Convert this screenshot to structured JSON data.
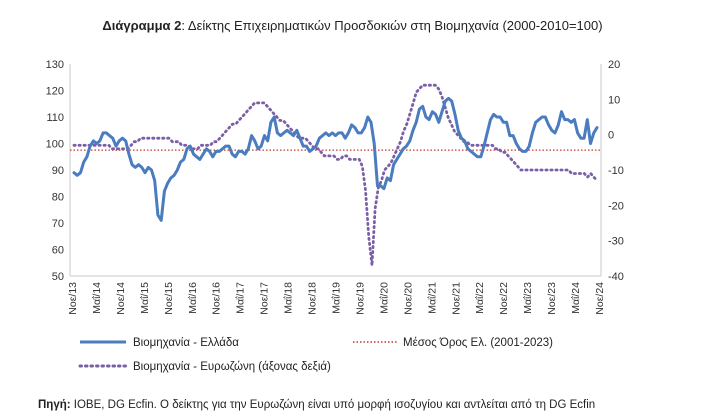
{
  "title_bold": "Διάγραμμα 2",
  "title_rest": ": Δείκτης Επιχειρηματικών Προσδοκιών στη Βιομηχανία (2000-2010=100)",
  "source_label": "Πηγή:",
  "source_text": " ΙΟΒΕ, DG Ecfin. Ο δείκτης για την Ευρωζώνη είναι υπό μορφή ισοζυγίου και αντλείται από τη DG Ecfin",
  "colors": {
    "greece": "#4a7cbf",
    "mean": "#c0392b",
    "eurozone": "#7b5fa6",
    "axis": "#999999"
  },
  "chart_data": {
    "type": "line",
    "title": "Δείκτης Επιχειρηματικών Προσδοκιών στη Βιομηχανία (2000-2010=100)",
    "x_tick_labels": [
      "Νοε/13",
      "Μαΐ/14",
      "Νοε/14",
      "Μαΐ/15",
      "Νοε/15",
      "Μαΐ/16",
      "Νοε/16",
      "Μαΐ/17",
      "Νοε/17",
      "Μαΐ/18",
      "Νοε/18",
      "Μαΐ/19",
      "Νοε/19",
      "Μαΐ/20",
      "Νοε/20",
      "Μαΐ/21",
      "Νοε/21",
      "Μαΐ/22",
      "Νοε/22",
      "Μαΐ/23",
      "Νοε/23",
      "Μαΐ/24",
      "Νοε/24"
    ],
    "y_left": {
      "min": 50,
      "max": 130,
      "step": 10,
      "ticks": [
        "50",
        "60",
        "70",
        "80",
        "90",
        "100",
        "110",
        "120",
        "130"
      ]
    },
    "y_right": {
      "min": -40,
      "max": 20,
      "step": 10,
      "ticks": [
        "-40",
        "-30",
        "-20",
        "-10",
        "0",
        "10",
        "20"
      ]
    },
    "grid": false,
    "legend_position": "bottom",
    "series": [
      {
        "name": "Βιομηχανία  - Ελλάδα",
        "axis": "left",
        "style": "solid",
        "values": [
          89,
          88,
          89,
          93,
          95,
          99,
          101,
          100,
          101,
          104,
          104,
          103,
          102,
          99,
          101,
          102,
          101,
          96,
          92,
          91,
          92,
          91,
          89,
          91,
          90,
          86,
          73,
          71,
          82,
          85,
          87,
          88,
          90,
          93,
          94,
          98,
          99,
          96,
          95,
          94,
          96,
          98,
          97,
          95,
          97,
          97,
          98,
          99,
          99,
          96,
          95,
          97,
          97,
          96,
          98,
          103,
          101,
          98,
          99,
          103,
          101,
          108,
          110,
          104,
          103,
          104,
          105,
          104,
          103,
          105,
          102,
          99,
          99,
          97,
          98,
          99,
          102,
          103,
          104,
          103,
          104,
          103,
          104,
          104,
          102,
          104,
          107,
          106,
          104,
          104,
          106,
          110,
          108,
          100,
          84,
          84,
          83,
          87,
          86,
          92,
          94,
          96,
          98,
          99,
          101,
          105,
          108,
          113,
          114,
          110,
          109,
          112,
          111,
          108,
          112,
          116,
          117,
          116,
          111,
          105,
          102,
          101,
          98,
          97,
          96,
          95,
          95,
          99,
          104,
          109,
          111,
          110,
          110,
          108,
          108,
          103,
          103,
          100,
          98,
          97,
          97,
          99,
          104,
          108,
          109,
          110,
          110,
          107,
          105,
          104,
          107,
          112,
          109,
          109,
          108,
          109,
          104,
          102,
          102,
          109,
          100,
          104,
          106
        ]
      },
      {
        "name": "Μέσος Όρος Ελ. (2001-2023)",
        "axis": "left",
        "style": "dotted",
        "constant": 97.5
      },
      {
        "name": "Βιομηχανία - Ευρωζώνη (άξονας δεξιά)",
        "axis": "right",
        "style": "dotted",
        "values": [
          -3,
          -3,
          -3,
          -3,
          -3,
          -3,
          -3,
          -3,
          -3,
          -3,
          -3,
          -3,
          -4,
          -4,
          -4,
          -4,
          -4,
          -4,
          -3,
          -2,
          -2,
          -1,
          -1,
          -1,
          -1,
          -1,
          -1,
          -1,
          -1,
          -1,
          -1,
          -2,
          -2,
          -2,
          -3,
          -3,
          -3,
          -4,
          -4,
          -4,
          -3,
          -3,
          -3,
          -3,
          -2,
          -2,
          -1,
          0,
          1,
          2,
          3,
          3,
          4,
          5,
          6,
          7,
          8,
          9,
          9,
          9,
          9,
          8,
          7,
          6,
          5,
          4,
          4,
          3,
          2,
          1,
          0,
          -1,
          -1,
          -1,
          -2,
          -3,
          -4,
          -4,
          -5,
          -6,
          -6,
          -6,
          -6,
          -7,
          -7,
          -6,
          -6,
          -7,
          -7,
          -7,
          -7,
          -9,
          -16,
          -29,
          -37,
          -21,
          -15,
          -13,
          -10,
          -9,
          -8,
          -6,
          -4,
          -2,
          1,
          3,
          6,
          9,
          12,
          13,
          14,
          14,
          14,
          14,
          14,
          13,
          11,
          8,
          5,
          3,
          1,
          0,
          -1,
          -2,
          -2,
          -3,
          -3,
          -3,
          -3,
          -3,
          -3,
          -3,
          -3,
          -4,
          -4,
          -5,
          -5,
          -6,
          -7,
          -8,
          -9,
          -10,
          -10,
          -10,
          -10,
          -10,
          -10,
          -10,
          -10,
          -10,
          -10,
          -10,
          -10,
          -10,
          -10,
          -10,
          -10,
          -11,
          -11,
          -11,
          -11,
          -11,
          -12,
          -11,
          -12,
          -13
        ]
      }
    ]
  }
}
